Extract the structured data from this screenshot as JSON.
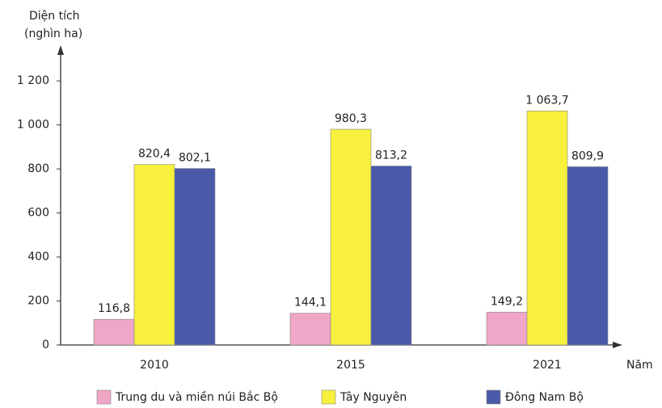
{
  "chart_data": {
    "type": "bar",
    "ylabel": [
      "Diện tích",
      "(nghìn ha)"
    ],
    "xlabel": "Năm",
    "categories": [
      "2010",
      "2015",
      "2021"
    ],
    "series": [
      {
        "name": "Trung du và miền núi Bắc Bộ",
        "color": "#f0a6c6",
        "values": [
          116.8,
          144.1,
          149.2
        ],
        "value_labels": [
          "116,8",
          "144,1",
          "149,2"
        ]
      },
      {
        "name": "Tây Nguyên",
        "color": "#f7f03c",
        "values": [
          820.4,
          980.3,
          1063.7
        ],
        "value_labels": [
          "820,4",
          "980,3",
          "1 063,7"
        ]
      },
      {
        "name": "Đông Nam Bộ",
        "color": "#4a5aa8",
        "values": [
          802.1,
          813.2,
          809.9
        ],
        "value_labels": [
          "802,1",
          "813,2",
          "809,9"
        ]
      }
    ],
    "ylim": [
      0,
      1340
    ],
    "yticks": [
      0,
      200,
      400,
      600,
      800,
      {
        "value": 1000,
        "label": "1 000"
      },
      {
        "value": 1200,
        "label": "1 200"
      }
    ]
  }
}
